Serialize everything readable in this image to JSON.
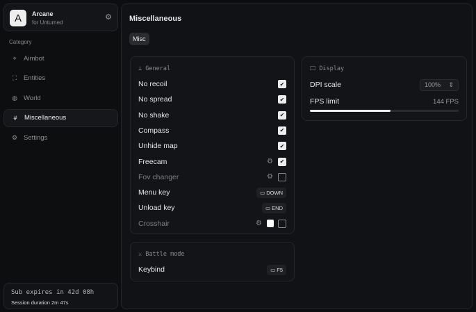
{
  "brand": {
    "logo": "A",
    "title": "Arcane",
    "subtitle": "for Unturned"
  },
  "sidebar": {
    "category_label": "Category",
    "items": [
      {
        "label": "Aimbot",
        "icon": "crosshair-icon"
      },
      {
        "label": "Entities",
        "icon": "scan-icon"
      },
      {
        "label": "World",
        "icon": "globe-icon"
      },
      {
        "label": "Miscellaneous",
        "icon": "grid-icon",
        "active": true
      },
      {
        "label": "Settings",
        "icon": "gear-icon"
      }
    ]
  },
  "subscription": {
    "expires": "Sub expires in 42d 08h",
    "session": "Session duration 2m 47s"
  },
  "main": {
    "title": "Miscellaneous",
    "tab": "Misc"
  },
  "general": {
    "header": "General",
    "rows": [
      {
        "label": "No recoil",
        "checked": true
      },
      {
        "label": "No spread",
        "checked": true
      },
      {
        "label": "No shake",
        "checked": true
      },
      {
        "label": "Compass",
        "checked": true
      },
      {
        "label": "Unhide map",
        "checked": true
      },
      {
        "label": "Freecam",
        "checked": true,
        "gear": true
      },
      {
        "label": "Fov changer",
        "checked": false,
        "gear": true,
        "dim": true
      },
      {
        "label": "Menu key",
        "key": "DOWN"
      },
      {
        "label": "Unload key",
        "key": "END"
      },
      {
        "label": "Crosshair",
        "checked": false,
        "gear": true,
        "color": "#ffffff",
        "dim": true
      }
    ]
  },
  "display": {
    "header": "Display",
    "dpi_label": "DPI scale",
    "dpi_value": "100%",
    "fps_label": "FPS limit",
    "fps_value": "144 FPS",
    "fps_slider_percent": 54
  },
  "battle": {
    "header": "Battle mode",
    "keybind_label": "Keybind",
    "keybind_value": "F5"
  }
}
